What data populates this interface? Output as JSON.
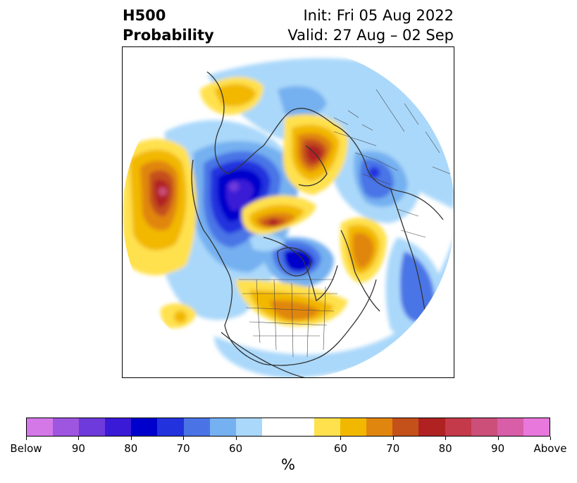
{
  "title": {
    "left_line1": "H500",
    "left_line2": "Probability",
    "right_line1": "Init: Fri 05 Aug 2022",
    "right_line2": "Valid: 27 Aug – 02 Sep"
  },
  "colors": {
    "below": [
      "#d478e8",
      "#9e55e0",
      "#6e3adb",
      "#3a1ad6",
      "#0000cc",
      "#2233dd",
      "#4a74e6",
      "#75b0f0",
      "#aad8fa"
    ],
    "neutral": [
      "#ffffff",
      "#ffffff"
    ],
    "above": [
      "#ffe14d",
      "#f2b800",
      "#e0860e",
      "#c4501a",
      "#b02222",
      "#c43a4a",
      "#cc4f7a",
      "#d85ea8",
      "#e878dc"
    ]
  },
  "colorbar": {
    "ticks": [
      "Below",
      "90",
      "80",
      "70",
      "60",
      "60",
      "70",
      "80",
      "90",
      "Above"
    ],
    "unit": "%"
  },
  "map": {
    "projection": "north-polar-stereographic",
    "features": [
      "coastlines",
      "country-borders",
      "us-state-borders"
    ]
  }
}
